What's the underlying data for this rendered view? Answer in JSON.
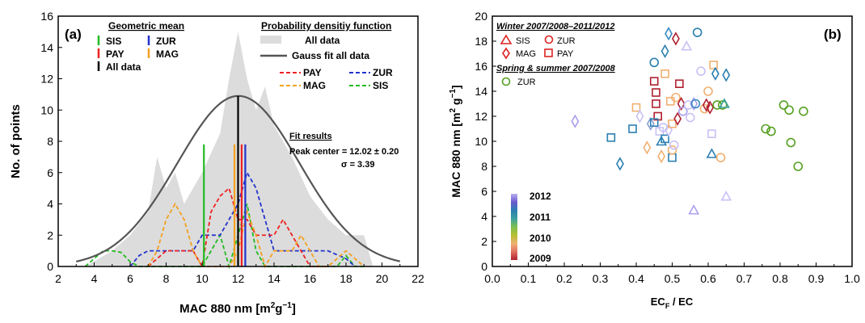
{
  "chart_data": [
    {
      "type": "line",
      "panel_label": "(a)",
      "xlabel": "MAC 880 nm [m",
      "xlabel_sup": "2",
      "xlabel_mid": "g",
      "xlabel_sup2": "−1",
      "xlabel_end": "]",
      "ylabel": "No. of points",
      "xlim": [
        2,
        22
      ],
      "ylim": [
        0,
        16
      ],
      "xticks": [
        "2",
        "4",
        "6",
        "8",
        "10",
        "12",
        "14",
        "16",
        "18",
        "20",
        "22"
      ],
      "yticks": [
        "0",
        "2",
        "4",
        "6",
        "8",
        "10",
        "12",
        "14",
        "16"
      ],
      "legend_geo_title": "Geometric mean",
      "legend_geo": [
        {
          "name": "SIS",
          "color": "#22bb22"
        },
        {
          "name": "ZUR",
          "color": "#2233cc"
        },
        {
          "name": "PAY",
          "color": "#ee2222"
        },
        {
          "name": "MAG",
          "color": "#f5a020"
        },
        {
          "name": "All data",
          "color": "#000000"
        }
      ],
      "legend_pdf_title": "Probability densitiy function",
      "legend_pdf": [
        {
          "name": "All data",
          "color": "#dddddd",
          "kind": "area"
        },
        {
          "name": "Gauss fit all data",
          "color": "#555555",
          "kind": "solid"
        },
        {
          "name": "PAY",
          "color": "#ee2222",
          "kind": "dash"
        },
        {
          "name": "ZUR",
          "color": "#2233cc",
          "kind": "dash"
        },
        {
          "name": "MAG",
          "color": "#f5a020",
          "kind": "dash"
        },
        {
          "name": "SIS",
          "color": "#22bb22",
          "kind": "dash"
        }
      ],
      "fit_title": "Fit results",
      "fit_peak": "Peak center = 12.02 ± 0.20",
      "fit_sigma": "σ = 3.39",
      "all_data_area": {
        "x": [
          3.5,
          5,
          6,
          7,
          7.5,
          8,
          8.5,
          9,
          10,
          11,
          11.5,
          12,
          12.5,
          13,
          13.5,
          14,
          15,
          16,
          17,
          18,
          19,
          19.5
        ],
        "y": [
          0,
          1,
          2,
          3.5,
          7,
          5,
          6,
          4,
          6,
          8.5,
          12,
          15,
          12,
          10,
          11.5,
          9,
          7,
          4.5,
          3,
          2,
          2,
          0
        ]
      },
      "gauss_fit": {
        "center": 12.02,
        "sigma": 3.39,
        "peak": 10.9,
        "range": [
          3,
          21
        ]
      },
      "geometric_means": [
        {
          "name": "SIS",
          "x": 10.1,
          "height": 7.8,
          "color": "#22bb22"
        },
        {
          "name": "MAG",
          "x": 11.8,
          "height": 7.8,
          "color": "#f5a020"
        },
        {
          "name": "All data",
          "x": 12.0,
          "height": 10.9,
          "color": "#000000"
        },
        {
          "name": "PAY",
          "x": 12.2,
          "height": 7.8,
          "color": "#ee2222"
        },
        {
          "name": "ZUR",
          "x": 12.4,
          "height": 7.8,
          "color": "#2233cc"
        }
      ],
      "series": [
        {
          "name": "SIS",
          "color": "#22bb22",
          "x": [
            3.5,
            4,
            4.5,
            5,
            5.5,
            6,
            6.5,
            7,
            7.5,
            8,
            9,
            10,
            10.5,
            11,
            11.5,
            12,
            12.5,
            13,
            13.5,
            14,
            15,
            16,
            17,
            17.5,
            18,
            18.5,
            19
          ],
          "y": [
            0,
            0.5,
            1,
            1,
            0.9,
            0.3,
            0,
            0,
            0,
            0,
            0,
            0,
            1,
            2,
            0,
            2,
            4,
            1,
            0,
            0,
            0,
            0,
            0,
            0,
            0.7,
            0,
            0
          ]
        },
        {
          "name": "ZUR",
          "color": "#2233cc",
          "x": [
            6,
            6.5,
            7,
            7.5,
            8,
            9,
            9.5,
            10,
            10.5,
            11,
            11.5,
            12,
            12.5,
            13,
            13.5,
            14,
            15,
            16,
            17,
            18,
            18.5
          ],
          "y": [
            0,
            0.7,
            1,
            1,
            1,
            1,
            1,
            2,
            2,
            2,
            3,
            4,
            6,
            5,
            3,
            1,
            1,
            1,
            1,
            0.5,
            0
          ]
        },
        {
          "name": "PAY",
          "color": "#ee2222",
          "x": [
            7,
            7.5,
            8,
            8.5,
            9,
            9.5,
            10,
            10.5,
            11,
            11.5,
            12,
            12.5,
            13,
            13.5,
            14,
            14.5,
            15,
            15.5,
            16,
            16.5,
            17
          ],
          "y": [
            0,
            0.5,
            1,
            1,
            1,
            1,
            0,
            3.5,
            4.5,
            5,
            3,
            3,
            2,
            2,
            2,
            3,
            2,
            1,
            0,
            0,
            0
          ]
        },
        {
          "name": "MAG",
          "color": "#f5a020",
          "x": [
            7,
            7.5,
            8,
            8.5,
            9,
            9.5,
            10,
            10.5,
            11,
            11.5,
            12,
            12.5,
            13,
            13.5,
            14,
            14.5,
            15,
            15.5,
            16,
            16.5,
            17,
            17.5,
            18,
            18.5,
            19
          ],
          "y": [
            0,
            1,
            3,
            4,
            3,
            1,
            0,
            0,
            0,
            0,
            1,
            3.5,
            2,
            0,
            1,
            1,
            1,
            2,
            1,
            0,
            0,
            0.5,
            1,
            0.5,
            0
          ]
        }
      ]
    },
    {
      "type": "scatter",
      "panel_label": "(b)",
      "xlabel": "EC",
      "xlabel_sub": "F",
      "xlabel_end": " / EC",
      "ylabel": "MAC 880 nm [m",
      "ylabel_sup": "2",
      "ylabel_mid": " g",
      "ylabel_sup2": "−1",
      "ylabel_end": "]",
      "xlim": [
        0,
        1
      ],
      "ylim": [
        0,
        20
      ],
      "xticks": [
        "0.0",
        "0.1",
        "0.2",
        "0.3",
        "0.4",
        "0.5",
        "0.6",
        "0.7",
        "0.8",
        "0.9",
        "1.0"
      ],
      "yticks": [
        "0",
        "2",
        "4",
        "6",
        "8",
        "10",
        "12",
        "14",
        "16",
        "18",
        "20"
      ],
      "legend_winter_title": "Winter 2007/2008–2011/2012",
      "legend_winter": [
        {
          "name": "SIS",
          "marker": "triangle"
        },
        {
          "name": "ZUR",
          "marker": "circle"
        },
        {
          "name": "MAG",
          "marker": "diamond"
        },
        {
          "name": "PAY",
          "marker": "square"
        }
      ],
      "legend_spring_title": "Spring & summer 2007/2008",
      "legend_spring": [
        {
          "name": "ZUR",
          "marker": "circle",
          "color": "#55a020"
        }
      ],
      "colorbar": {
        "labels": [
          "2012",
          "2011",
          "2010",
          "2009"
        ],
        "colors": [
          "#b8b0f0",
          "#6a5acd",
          "#2a7fb0",
          "#3aa0a0",
          "#7cc050",
          "#b5c030",
          "#f0b070",
          "#e07060",
          "#b02030"
        ]
      },
      "points": [
        {
          "x": 0.23,
          "y": 11.6,
          "m": "diamond",
          "c": "#aaa0ee"
        },
        {
          "x": 0.33,
          "y": 10.3,
          "m": "square",
          "c": "#2a7fb0"
        },
        {
          "x": 0.355,
          "y": 8.2,
          "m": "diamond",
          "c": "#2a7fb0"
        },
        {
          "x": 0.39,
          "y": 11.0,
          "m": "square",
          "c": "#2a7fb0"
        },
        {
          "x": 0.4,
          "y": 12.7,
          "m": "square",
          "c": "#f0b070"
        },
        {
          "x": 0.41,
          "y": 12.0,
          "m": "diamond",
          "c": "#c8c0f5"
        },
        {
          "x": 0.43,
          "y": 9.5,
          "m": "diamond",
          "c": "#f0b070"
        },
        {
          "x": 0.44,
          "y": 11.4,
          "m": "diamond",
          "c": "#8aa0d0"
        },
        {
          "x": 0.45,
          "y": 16.3,
          "m": "circle",
          "c": "#2a7fb0"
        },
        {
          "x": 0.45,
          "y": 14.8,
          "m": "square",
          "c": "#b02030"
        },
        {
          "x": 0.455,
          "y": 13.9,
          "m": "square",
          "c": "#b02030"
        },
        {
          "x": 0.455,
          "y": 13.0,
          "m": "square",
          "c": "#b02030"
        },
        {
          "x": 0.46,
          "y": 12.0,
          "m": "square",
          "c": "#b02030"
        },
        {
          "x": 0.45,
          "y": 11.5,
          "m": "square",
          "c": "#2a7fb0"
        },
        {
          "x": 0.465,
          "y": 10.8,
          "m": "square",
          "c": "#c8c0f5"
        },
        {
          "x": 0.47,
          "y": 8.8,
          "m": "diamond",
          "c": "#f0b070"
        },
        {
          "x": 0.47,
          "y": 10.0,
          "m": "triangle",
          "c": "#2a7fb0"
        },
        {
          "x": 0.475,
          "y": 11.1,
          "m": "circle",
          "c": "#c8c0f5"
        },
        {
          "x": 0.48,
          "y": 15.4,
          "m": "square",
          "c": "#f0b070"
        },
        {
          "x": 0.48,
          "y": 17.2,
          "m": "diamond",
          "c": "#2a7fb0"
        },
        {
          "x": 0.48,
          "y": 10.2,
          "m": "square",
          "c": "#2a7fb0"
        },
        {
          "x": 0.49,
          "y": 10.9,
          "m": "diamond",
          "c": "#c8c0f5"
        },
        {
          "x": 0.49,
          "y": 18.6,
          "m": "diamond",
          "c": "#3a8ac0"
        },
        {
          "x": 0.495,
          "y": 13.2,
          "m": "square",
          "c": "#f0b070"
        },
        {
          "x": 0.5,
          "y": 11.4,
          "m": "square",
          "c": "#f0b070"
        },
        {
          "x": 0.5,
          "y": 8.7,
          "m": "square",
          "c": "#2a7fb0"
        },
        {
          "x": 0.5,
          "y": 9.3,
          "m": "circle",
          "c": "#f0b070"
        },
        {
          "x": 0.505,
          "y": 9.7,
          "m": "circle",
          "c": "#c8c0f5"
        },
        {
          "x": 0.51,
          "y": 13.5,
          "m": "circle",
          "c": "#f0b070"
        },
        {
          "x": 0.51,
          "y": 18.2,
          "m": "diamond",
          "c": "#b02030"
        },
        {
          "x": 0.515,
          "y": 11.8,
          "m": "diamond",
          "c": "#b02030"
        },
        {
          "x": 0.52,
          "y": 14.6,
          "m": "square",
          "c": "#b02030"
        },
        {
          "x": 0.525,
          "y": 13.0,
          "m": "diamond",
          "c": "#b02030"
        },
        {
          "x": 0.53,
          "y": 12.4,
          "m": "circle",
          "c": "#aaa0ee"
        },
        {
          "x": 0.54,
          "y": 17.6,
          "m": "triangle",
          "c": "#c8c0f5"
        },
        {
          "x": 0.545,
          "y": 12.9,
          "m": "circle",
          "c": "#c8c0f5"
        },
        {
          "x": 0.55,
          "y": 11.9,
          "m": "circle",
          "c": "#c8c0f5"
        },
        {
          "x": 0.56,
          "y": 13.0,
          "m": "diamond",
          "c": "#aaa0ee"
        },
        {
          "x": 0.56,
          "y": 4.5,
          "m": "triangle",
          "c": "#aaa0ee"
        },
        {
          "x": 0.565,
          "y": 13.0,
          "m": "circle",
          "c": "#3a8ac0"
        },
        {
          "x": 0.57,
          "y": 18.7,
          "m": "circle",
          "c": "#2a7fb0"
        },
        {
          "x": 0.58,
          "y": 15.6,
          "m": "circle",
          "c": "#c8c0f5"
        },
        {
          "x": 0.59,
          "y": 12.6,
          "m": "circle",
          "c": "#f0b070"
        },
        {
          "x": 0.595,
          "y": 12.9,
          "m": "diamond",
          "c": "#b02030"
        },
        {
          "x": 0.6,
          "y": 14.0,
          "m": "circle",
          "c": "#f0b070"
        },
        {
          "x": 0.605,
          "y": 12.7,
          "m": "diamond",
          "c": "#b02030"
        },
        {
          "x": 0.61,
          "y": 9.0,
          "m": "triangle",
          "c": "#2a7fb0"
        },
        {
          "x": 0.61,
          "y": 10.6,
          "m": "square",
          "c": "#c8c0f5"
        },
        {
          "x": 0.615,
          "y": 16.1,
          "m": "square",
          "c": "#f0b070"
        },
        {
          "x": 0.62,
          "y": 15.4,
          "m": "diamond",
          "c": "#2a7fb0"
        },
        {
          "x": 0.625,
          "y": 12.9,
          "m": "circle",
          "c": "#55a020"
        },
        {
          "x": 0.635,
          "y": 8.7,
          "m": "circle",
          "c": "#f0b070"
        },
        {
          "x": 0.64,
          "y": 12.9,
          "m": "circle",
          "c": "#55a020"
        },
        {
          "x": 0.645,
          "y": 13.0,
          "m": "triangle",
          "c": "#3aa0a0"
        },
        {
          "x": 0.65,
          "y": 15.3,
          "m": "diamond",
          "c": "#2a7fb0"
        },
        {
          "x": 0.65,
          "y": 5.6,
          "m": "triangle",
          "c": "#c8c0f5"
        },
        {
          "x": 0.76,
          "y": 11.0,
          "m": "circle",
          "c": "#55a020"
        },
        {
          "x": 0.775,
          "y": 10.8,
          "m": "circle",
          "c": "#55a020"
        },
        {
          "x": 0.81,
          "y": 12.9,
          "m": "circle",
          "c": "#55a020"
        },
        {
          "x": 0.825,
          "y": 12.5,
          "m": "circle",
          "c": "#55a020"
        },
        {
          "x": 0.83,
          "y": 9.9,
          "m": "circle",
          "c": "#55a020"
        },
        {
          "x": 0.85,
          "y": 8.0,
          "m": "circle",
          "c": "#55a020"
        },
        {
          "x": 0.865,
          "y": 12.4,
          "m": "circle",
          "c": "#55a020"
        }
      ]
    }
  ]
}
